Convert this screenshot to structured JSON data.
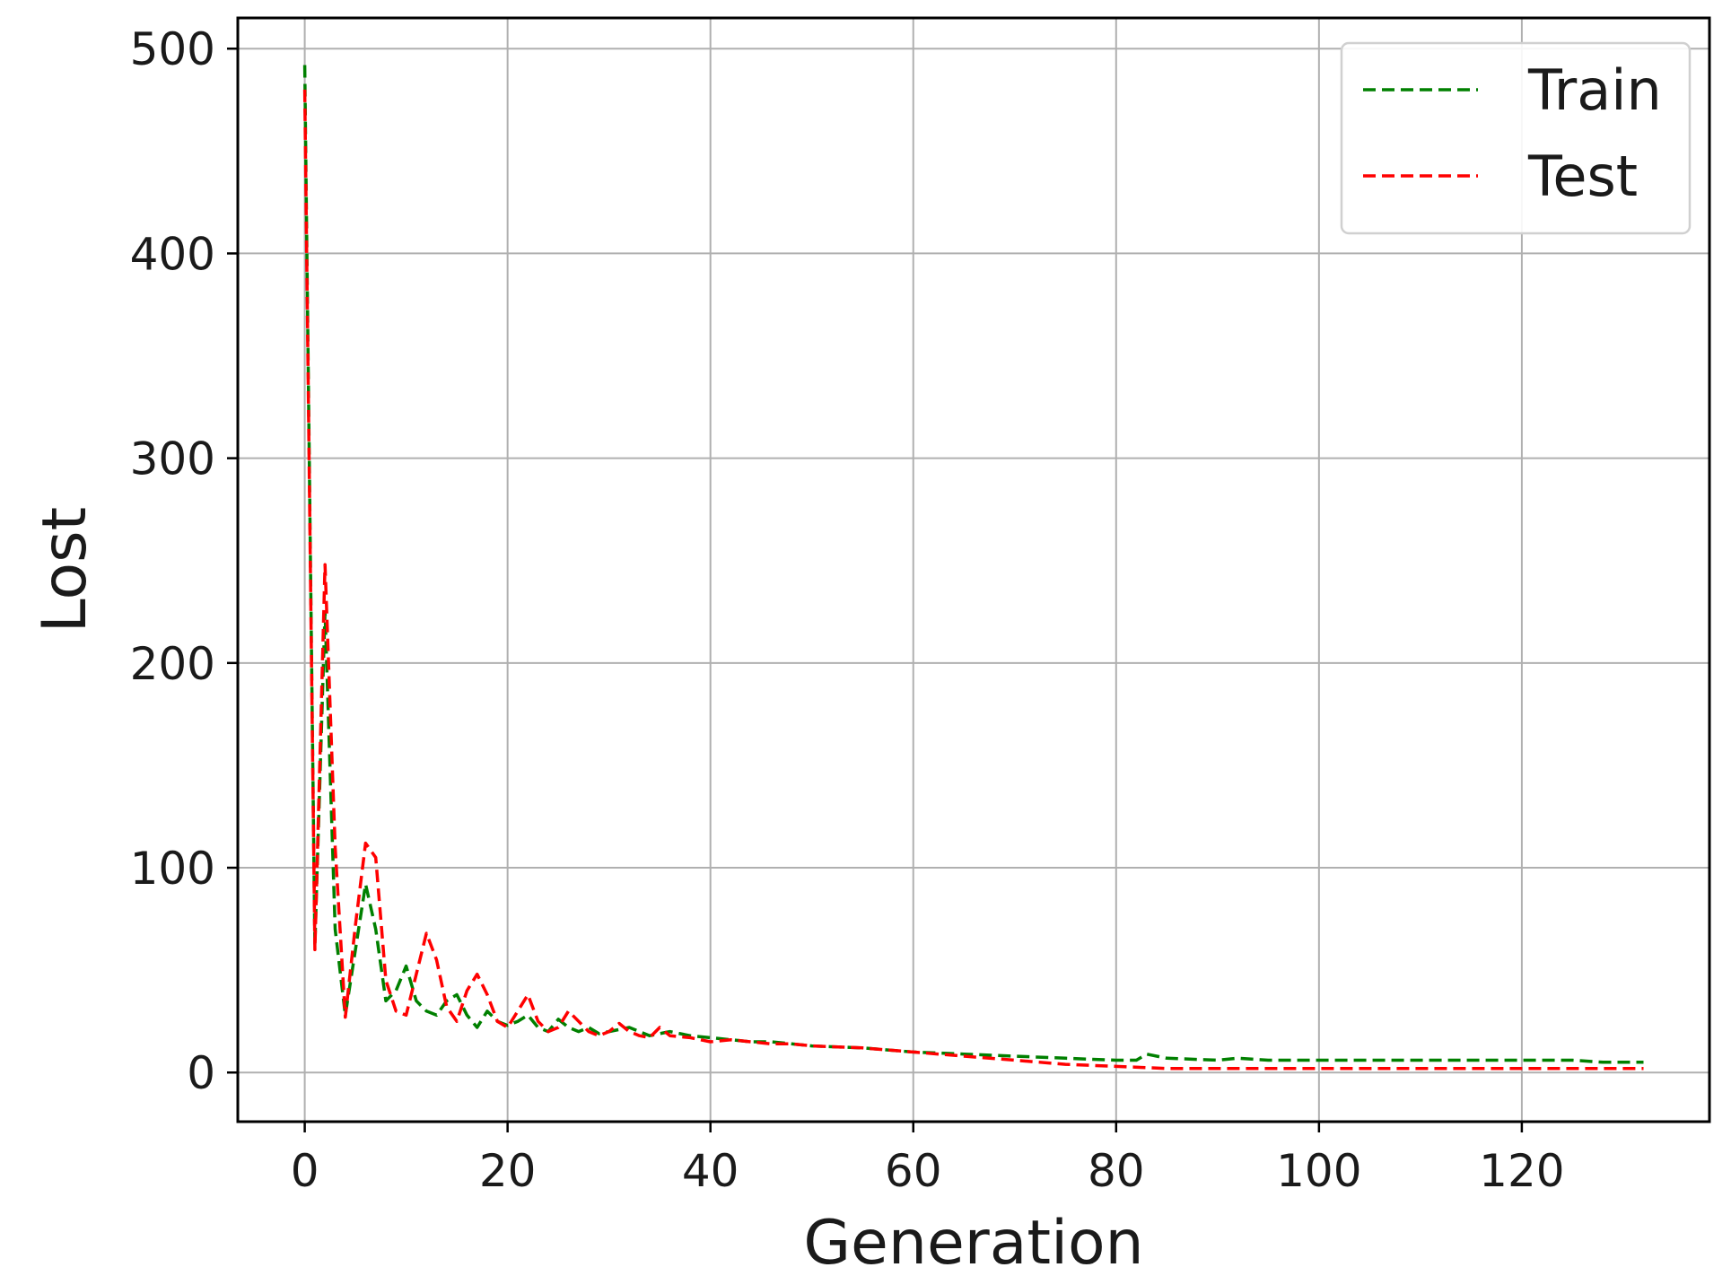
{
  "chart_data": {
    "type": "line",
    "title": "",
    "xlabel": "Generation",
    "ylabel": "Lost",
    "xlim": [
      -6.6,
      138.5
    ],
    "ylim": [
      -24,
      515
    ],
    "xticks": [
      0,
      20,
      40,
      60,
      80,
      100,
      120
    ],
    "yticks": [
      0,
      100,
      200,
      300,
      400,
      500
    ],
    "grid": true,
    "legend_position": "top-right",
    "series": [
      {
        "name": "Train",
        "color": "#008000",
        "linestyle": "dashed",
        "x": [
          0,
          1,
          2,
          3,
          4,
          5,
          6,
          7,
          8,
          9,
          10,
          11,
          12,
          13,
          14,
          15,
          16,
          17,
          18,
          19,
          20,
          21,
          22,
          23,
          24,
          25,
          26,
          27,
          28,
          29,
          30,
          32,
          34,
          36,
          38,
          40,
          42,
          44,
          46,
          48,
          50,
          55,
          60,
          65,
          70,
          75,
          80,
          82,
          83,
          85,
          90,
          92,
          95,
          100,
          105,
          110,
          115,
          120,
          125,
          128,
          132
        ],
        "y": [
          492,
          62,
          225,
          70,
          28,
          60,
          92,
          70,
          35,
          40,
          52,
          35,
          30,
          28,
          35,
          38,
          28,
          22,
          30,
          25,
          23,
          25,
          28,
          22,
          20,
          26,
          22,
          20,
          22,
          19,
          20,
          22,
          18,
          20,
          18,
          17,
          16,
          15,
          15,
          14,
          13,
          12,
          10,
          9,
          8,
          7,
          6,
          6,
          9,
          7,
          6,
          7,
          6,
          6,
          6,
          6,
          6,
          6,
          6,
          5,
          5
        ]
      },
      {
        "name": "Test",
        "color": "#ff0000",
        "linestyle": "dashed",
        "x": [
          0,
          1,
          2,
          3,
          4,
          5,
          6,
          7,
          8,
          9,
          10,
          11,
          12,
          13,
          14,
          15,
          16,
          17,
          18,
          19,
          20,
          21,
          22,
          23,
          24,
          25,
          26,
          27,
          28,
          29,
          30,
          31,
          32,
          33,
          34,
          35,
          36,
          38,
          40,
          42,
          44,
          46,
          48,
          50,
          55,
          60,
          65,
          70,
          75,
          80,
          85,
          90,
          100,
          110,
          120,
          132
        ],
        "y": [
          480,
          60,
          248,
          110,
          27,
          72,
          112,
          105,
          45,
          30,
          28,
          48,
          68,
          55,
          32,
          25,
          40,
          48,
          38,
          25,
          22,
          30,
          38,
          25,
          20,
          22,
          30,
          25,
          20,
          18,
          20,
          24,
          20,
          18,
          17,
          22,
          18,
          17,
          15,
          16,
          15,
          14,
          14,
          13,
          12,
          10,
          8,
          6,
          4,
          3,
          2,
          2,
          2,
          2,
          2,
          2
        ]
      }
    ]
  }
}
